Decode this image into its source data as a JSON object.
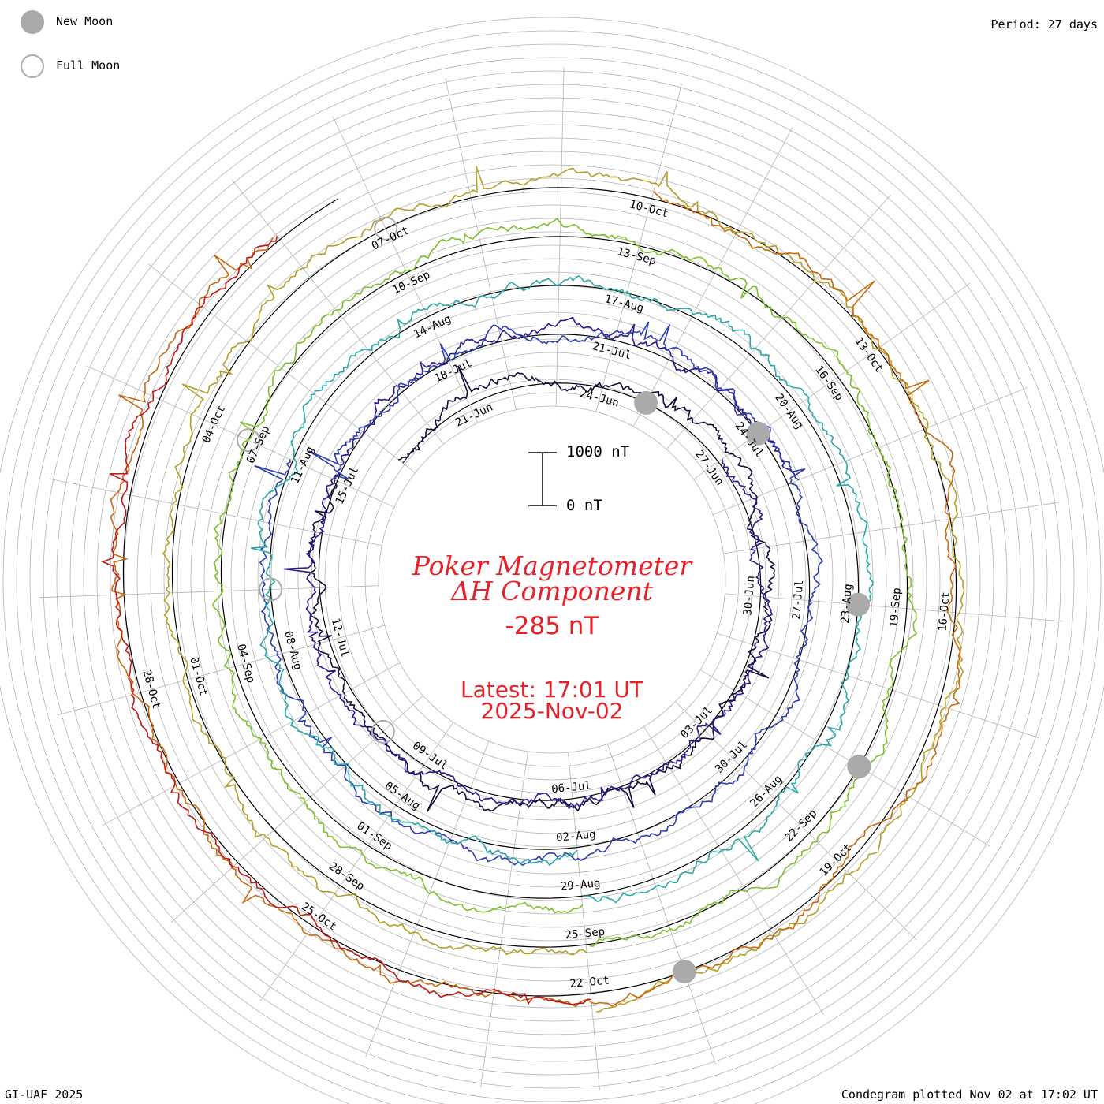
{
  "period_label": "Period: 27 days",
  "legend": {
    "new_moon": "New Moon",
    "full_moon": "Full Moon"
  },
  "footer": {
    "credit": "GI-UAF 2025",
    "plotted": "Condegram plotted Nov 02 at 17:02 UT"
  },
  "center": {
    "title_line1": "Poker Magnetometer",
    "title_line2": "ΔH Component",
    "current_value": "-285 nT",
    "latest_time": "Latest: 17:01 UT",
    "latest_date": "2025-Nov-02"
  },
  "scale_bar": {
    "top_label": "1000 nT",
    "bottom_label": "0 nT"
  },
  "colors": {
    "accent_text": "#e8202a",
    "grid": "#b4b4b4",
    "moon_new": "#aaaaaa",
    "moon_full": "#aaaaaa"
  },
  "chart_data": {
    "type": "line",
    "title": "Poker Magnetometer ΔH Component",
    "period_days": 27,
    "units": "nT",
    "series": [
      {
        "color": "#1a0a3c",
        "start": "19-Jun",
        "end": "15-Jul"
      },
      {
        "color": "#2a1a8c",
        "start": "27-Jun",
        "end": "25-Jul"
      },
      {
        "color": "#2c3cb0",
        "start": "15-Jul",
        "end": "11-Aug"
      },
      {
        "color": "#2aa8a8",
        "start": "02-Aug",
        "end": "29-Aug"
      },
      {
        "color": "#7cc02a",
        "start": "29-Aug",
        "end": "25-Sep"
      },
      {
        "color": "#b4a028",
        "start": "25-Sep",
        "end": "22-Oct"
      },
      {
        "color": "#c86a10",
        "start": "10-Oct",
        "end": "02-Nov"
      },
      {
        "color": "#c01818",
        "start": "22-Oct",
        "end": "02-Nov"
      }
    ],
    "tick_labels": [
      "21-Jun",
      "24-Jun",
      "27-Jun",
      "30-Jun",
      "03-Jul",
      "06-Jul",
      "09-Jul",
      "12-Jul",
      "15-Jul",
      "18-Jul",
      "21-Jul",
      "24-Jul",
      "27-Jul",
      "30-Jul",
      "02-Aug",
      "05-Aug",
      "08-Aug",
      "11-Aug",
      "14-Aug",
      "17-Aug",
      "20-Aug",
      "23-Aug",
      "26-Aug",
      "29-Aug",
      "01-Sep",
      "04-Sep",
      "07-Sep",
      "10-Sep",
      "13-Sep",
      "16-Sep",
      "19-Sep",
      "22-Sep",
      "25-Sep",
      "28-Sep",
      "01-Oct",
      "04-Oct",
      "07-Oct",
      "10-Oct",
      "13-Oct",
      "16-Oct",
      "19-Oct",
      "22-Oct",
      "25-Oct",
      "28-Oct"
    ],
    "new_moons": [
      "25-Jun",
      "24-Jul",
      "23-Aug",
      "21-Sep",
      "21-Oct"
    ],
    "full_moons": [
      "10-Jul",
      "09-Aug",
      "07-Sep",
      "07-Oct"
    ],
    "grid": true
  }
}
